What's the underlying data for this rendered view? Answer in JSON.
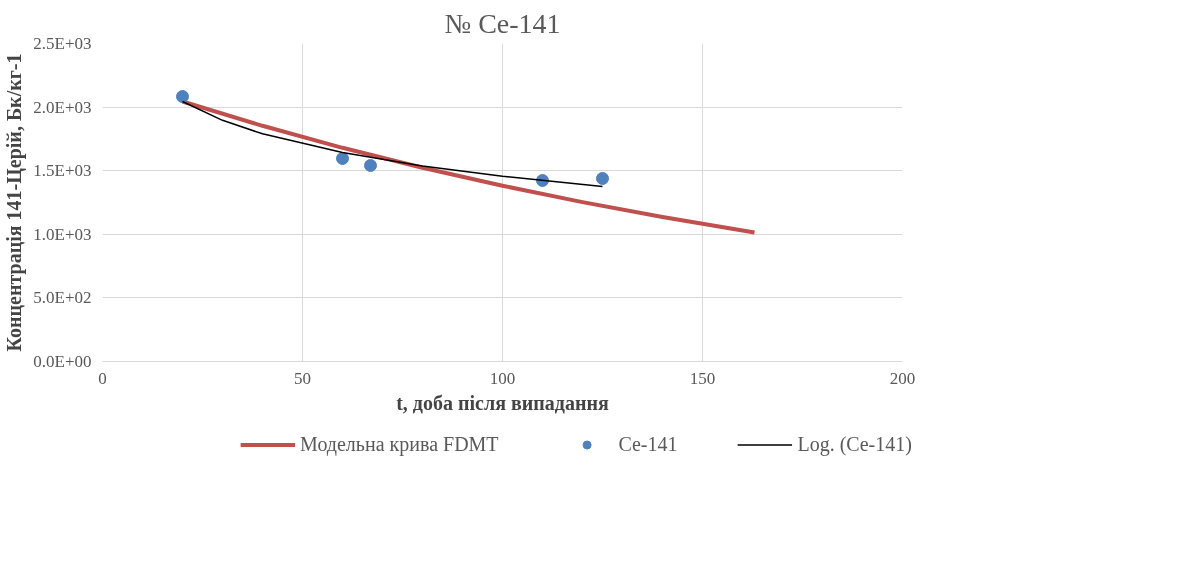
{
  "chart_data": {
    "type": "scatter",
    "title": "№ Ce-141",
    "xlabel": "t, доба після випадання",
    "ylabel": "Концентрація 141-Церій, Бк/кг-1",
    "xlim": [
      0,
      200
    ],
    "xticks": [
      0,
      50,
      100,
      150,
      200
    ],
    "ylim": [
      0,
      2500
    ],
    "yticks": [
      {
        "value": 0,
        "label": "0.0E+00"
      },
      {
        "value": 500,
        "label": "5.0E+02"
      },
      {
        "value": 1000,
        "label": "1.0E+03"
      },
      {
        "value": 1500,
        "label": "1.5E+03"
      },
      {
        "value": 2000,
        "label": "2.0E+03"
      },
      {
        "value": 2500,
        "label": "2.5E+03"
      }
    ],
    "grid": true,
    "legend": "bottom",
    "series": [
      {
        "name": "Модельна крива FDMT",
        "type": "line",
        "color": "#c0504d",
        "marker": "none",
        "x": [
          20,
          40,
          60,
          80,
          100,
          120,
          140,
          163
        ],
        "values": [
          2044,
          1853,
          1680,
          1523,
          1382,
          1253,
          1136,
          1014
        ]
      },
      {
        "name": "Ce-141",
        "color": "#4f81bd",
        "marker": "circle",
        "x": [
          20,
          60,
          67,
          110,
          125
        ],
        "values": [
          2083,
          1596,
          1541,
          1423,
          1439
        ]
      },
      {
        "name": "Log. (Ce-141)",
        "type": "line",
        "color": "#000000",
        "marker": "none",
        "x": [
          20,
          30,
          40,
          60,
          80,
          100,
          125
        ],
        "values": [
          2044,
          1896,
          1790,
          1643,
          1537,
          1456,
          1375
        ]
      }
    ]
  }
}
